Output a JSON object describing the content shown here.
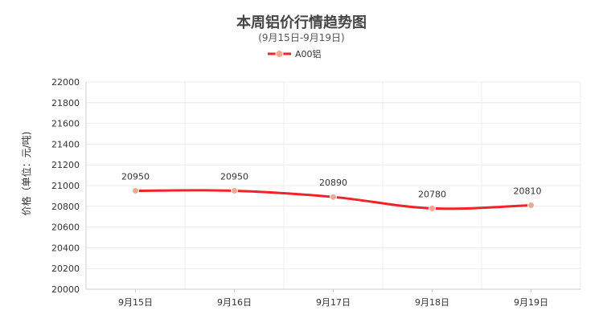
{
  "chart_data": {
    "type": "line",
    "title": "本周铝价行情趋势图",
    "subtitle": "(9月15日-9月19日)",
    "ylabel": "价格（单位：元/吨)",
    "xlabel": "",
    "ylim": [
      20000,
      22000
    ],
    "y_ticks": [
      20000,
      20200,
      20400,
      20600,
      20800,
      21000,
      21200,
      21400,
      21600,
      21800,
      22000
    ],
    "categories": [
      "9月15日",
      "9月16日",
      "9月17日",
      "9月18日",
      "9月19日"
    ],
    "series": [
      {
        "name": "A00铝",
        "values": [
          20950,
          20950,
          20890,
          20780,
          20810
        ]
      }
    ],
    "legend_position": "top-center",
    "grid": true,
    "colors": {
      "line": "#f0232a",
      "point": "#f0a890",
      "grid": "#ececec",
      "axis": "#cccccc"
    }
  }
}
